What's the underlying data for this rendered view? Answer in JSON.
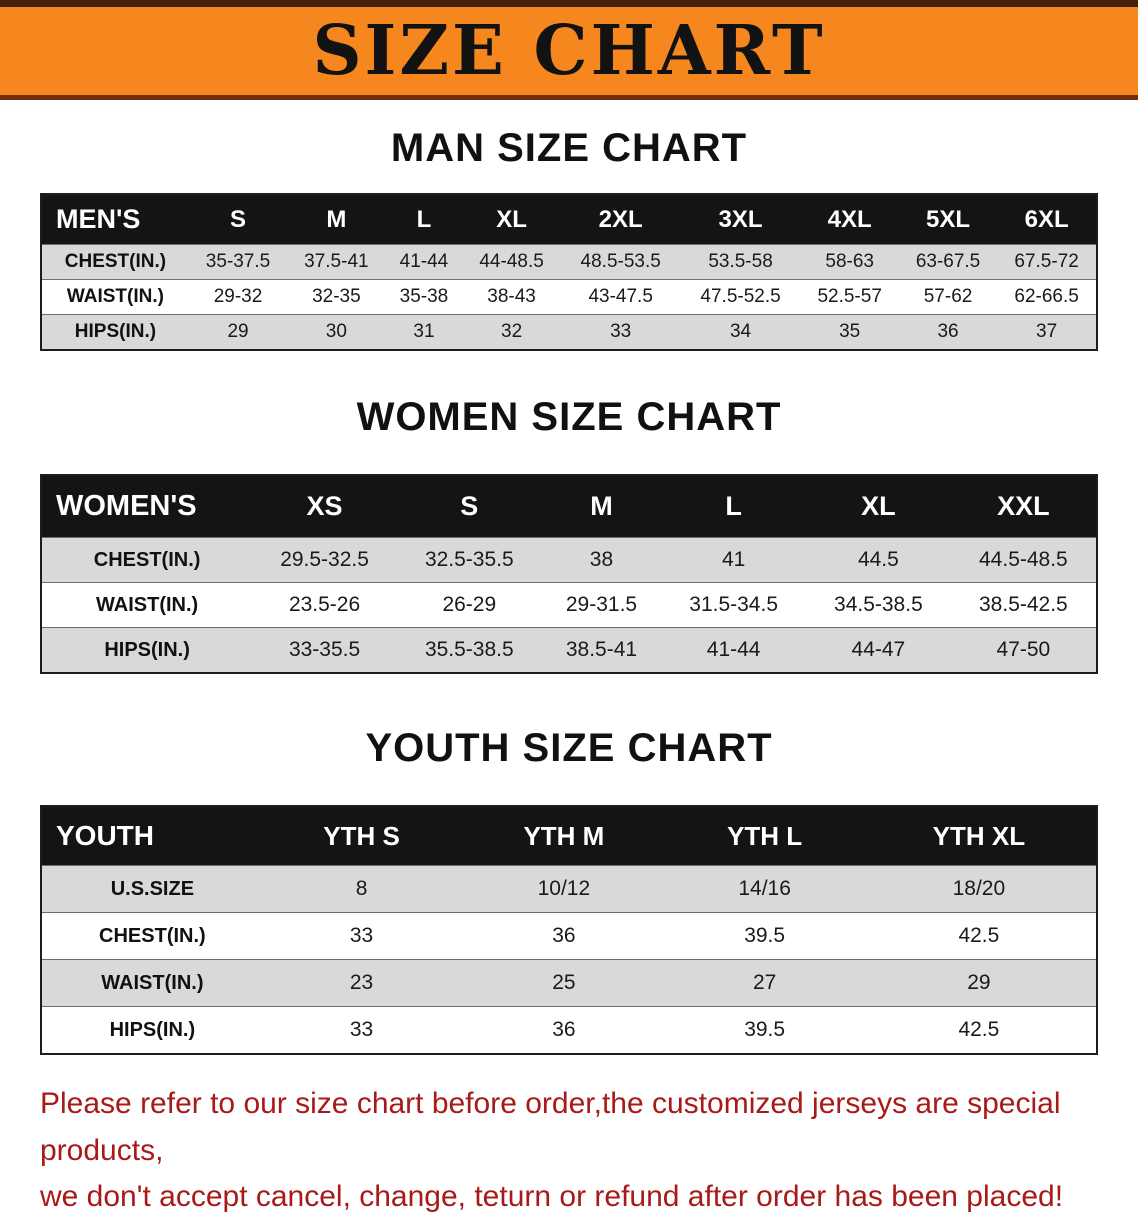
{
  "banner": {
    "title": "SIZE CHART"
  },
  "colors": {
    "banner_bg": "#f6871f",
    "table_header_bg": "#141414",
    "row_alt_bg": "#d9d9d9",
    "footer_text": "#a81a1a"
  },
  "men": {
    "heading": "MAN SIZE CHART",
    "header": {
      "label": "MEN'S",
      "cols": [
        "S",
        "M",
        "L",
        "XL",
        "2XL",
        "3XL",
        "4XL",
        "5XL",
        "6XL"
      ]
    },
    "rows": [
      {
        "label": "CHEST(IN.)",
        "values": [
          "35-37.5",
          "37.5-41",
          "41-44",
          "44-48.5",
          "48.5-53.5",
          "53.5-58",
          "58-63",
          "63-67.5",
          "67.5-72"
        ]
      },
      {
        "label": "WAIST(IN.)",
        "values": [
          "29-32",
          "32-35",
          "35-38",
          "38-43",
          "43-47.5",
          "47.5-52.5",
          "52.5-57",
          "57-62",
          "62-66.5"
        ]
      },
      {
        "label": "HIPS(IN.)",
        "values": [
          "29",
          "30",
          "31",
          "32",
          "33",
          "34",
          "35",
          "36",
          "37"
        ]
      }
    ]
  },
  "women": {
    "heading": "WOMEN SIZE CHART",
    "header": {
      "label": "WOMEN'S",
      "cols": [
        "XS",
        "S",
        "M",
        "L",
        "XL",
        "XXL"
      ]
    },
    "rows": [
      {
        "label": "CHEST(IN.)",
        "values": [
          "29.5-32.5",
          "32.5-35.5",
          "38",
          "41",
          "44.5",
          "44.5-48.5"
        ]
      },
      {
        "label": "WAIST(IN.)",
        "values": [
          "23.5-26",
          "26-29",
          "29-31.5",
          "31.5-34.5",
          "34.5-38.5",
          "38.5-42.5"
        ]
      },
      {
        "label": "HIPS(IN.)",
        "values": [
          "33-35.5",
          "35.5-38.5",
          "38.5-41",
          "41-44",
          "44-47",
          "47-50"
        ]
      }
    ]
  },
  "youth": {
    "heading": "YOUTH SIZE CHART",
    "header": {
      "label": "YOUTH",
      "cols": [
        "YTH S",
        "YTH M",
        "YTH L",
        "YTH XL"
      ]
    },
    "rows": [
      {
        "label": "U.S.SIZE",
        "values": [
          "8",
          "10/12",
          "14/16",
          "18/20"
        ]
      },
      {
        "label": "CHEST(IN.)",
        "values": [
          "33",
          "36",
          "39.5",
          "42.5"
        ]
      },
      {
        "label": "WAIST(IN.)",
        "values": [
          "23",
          "25",
          "27",
          "29"
        ]
      },
      {
        "label": "HIPS(IN.)",
        "values": [
          "33",
          "36",
          "39.5",
          "42.5"
        ]
      }
    ]
  },
  "footer": {
    "line1": "Please refer to our size chart before order,the customized jerseys are special products,",
    "line2": "we don't accept cancel, change, teturn or refund after order has been placed!"
  }
}
